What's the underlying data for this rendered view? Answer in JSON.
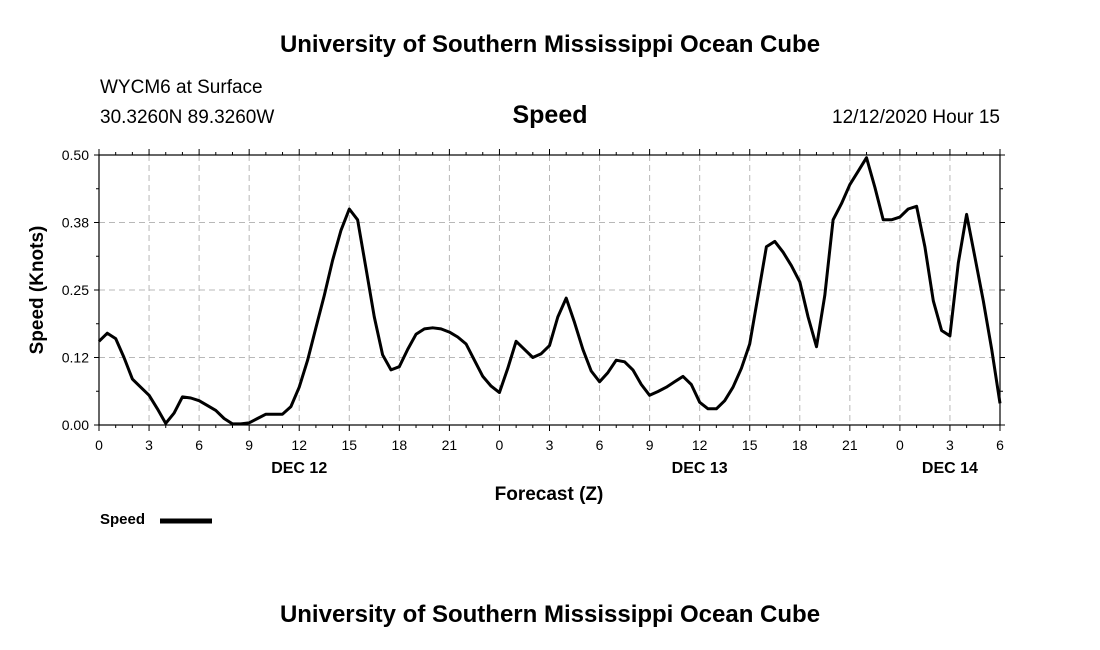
{
  "header": {
    "title": "University of Southern Mississippi Ocean Cube",
    "station": "WYCM6 at Surface",
    "coords": "30.3260N 89.3260W",
    "variable": "Speed",
    "run": "12/12/2020 Hour 15"
  },
  "footer": {
    "title": "University of Southern Mississippi Ocean Cube"
  },
  "chart_data": {
    "type": "line",
    "title": "Speed",
    "xlabel": "Forecast (Z)",
    "ylabel": "Speed (Knots)",
    "ylim": [
      0,
      0.5
    ],
    "xlim": [
      0,
      54
    ],
    "yticks": [
      0,
      0.125,
      0.25,
      0.375,
      0.5
    ],
    "ytick_labels": [
      "0.00",
      "0.12",
      "0.25",
      "0.38",
      "0.50"
    ],
    "xticks": [
      0,
      3,
      6,
      9,
      12,
      15,
      18,
      21,
      24,
      27,
      30,
      33,
      36,
      39,
      42,
      45,
      48,
      51,
      54
    ],
    "xtick_labels": [
      "0",
      "3",
      "6",
      "9",
      "12",
      "15",
      "18",
      "21",
      "0",
      "3",
      "6",
      "9",
      "12",
      "15",
      "18",
      "21",
      "0",
      "3",
      "6"
    ],
    "date_labels": [
      {
        "x": 12,
        "label": "DEC 12"
      },
      {
        "x": 36,
        "label": "DEC 13"
      },
      {
        "x": 51,
        "label": "DEC 14"
      }
    ],
    "grid": true,
    "legend": [
      {
        "name": "Speed",
        "color": "#000000"
      }
    ],
    "series": [
      {
        "name": "Speed",
        "color": "#000000",
        "x": [
          0,
          0.5,
          1,
          1.5,
          2,
          2.5,
          3,
          3.5,
          4,
          4.5,
          5,
          5.5,
          6,
          6.5,
          7,
          7.5,
          8,
          8.5,
          9,
          9.5,
          10,
          10.5,
          11,
          11.5,
          12,
          12.5,
          13,
          13.5,
          14,
          14.5,
          15,
          15.5,
          16,
          16.5,
          17,
          17.5,
          18,
          18.5,
          19,
          19.5,
          20,
          20.5,
          21,
          21.5,
          22,
          22.5,
          23,
          23.5,
          24,
          24.5,
          25,
          25.5,
          26,
          26.5,
          27,
          27.5,
          28,
          28.5,
          29,
          29.5,
          30,
          30.5,
          31,
          31.5,
          32,
          32.5,
          33,
          33.5,
          34,
          34.5,
          35,
          35.5,
          36,
          36.5,
          37,
          37.5,
          38,
          38.5,
          39,
          39.5,
          40,
          40.5,
          41,
          41.5,
          42,
          42.5,
          43,
          43.5,
          44,
          44.5,
          45,
          45.5,
          46,
          46.5,
          47,
          47.5,
          48,
          48.5,
          49,
          49.5,
          50,
          50.5,
          51,
          51.5,
          52,
          52.5,
          53,
          53.5,
          54
        ],
        "values": [
          0.155,
          0.17,
          0.16,
          0.125,
          0.085,
          0.07,
          0.055,
          0.03,
          0.003,
          0.022,
          0.052,
          0.05,
          0.045,
          0.036,
          0.027,
          0.012,
          0.002,
          0.002,
          0.004,
          0.012,
          0.02,
          0.02,
          0.02,
          0.034,
          0.07,
          0.12,
          0.18,
          0.24,
          0.305,
          0.36,
          0.4,
          0.38,
          0.29,
          0.2,
          0.13,
          0.102,
          0.108,
          0.14,
          0.168,
          0.178,
          0.18,
          0.178,
          0.172,
          0.163,
          0.15,
          0.12,
          0.09,
          0.072,
          0.06,
          0.105,
          0.155,
          0.14,
          0.125,
          0.132,
          0.147,
          0.2,
          0.235,
          0.19,
          0.14,
          0.1,
          0.08,
          0.097,
          0.12,
          0.117,
          0.102,
          0.075,
          0.055,
          0.062,
          0.07,
          0.08,
          0.09,
          0.075,
          0.042,
          0.03,
          0.03,
          0.045,
          0.07,
          0.105,
          0.15,
          0.24,
          0.33,
          0.34,
          0.32,
          0.295,
          0.265,
          0.2,
          0.145,
          0.24,
          0.38,
          0.41,
          0.445,
          0.47,
          0.495,
          0.44,
          0.38,
          0.38,
          0.385,
          0.4,
          0.405,
          0.33,
          0.23,
          0.175,
          0.165,
          0.3,
          0.39,
          0.31,
          0.23,
          0.14,
          0.04
        ]
      }
    ]
  }
}
